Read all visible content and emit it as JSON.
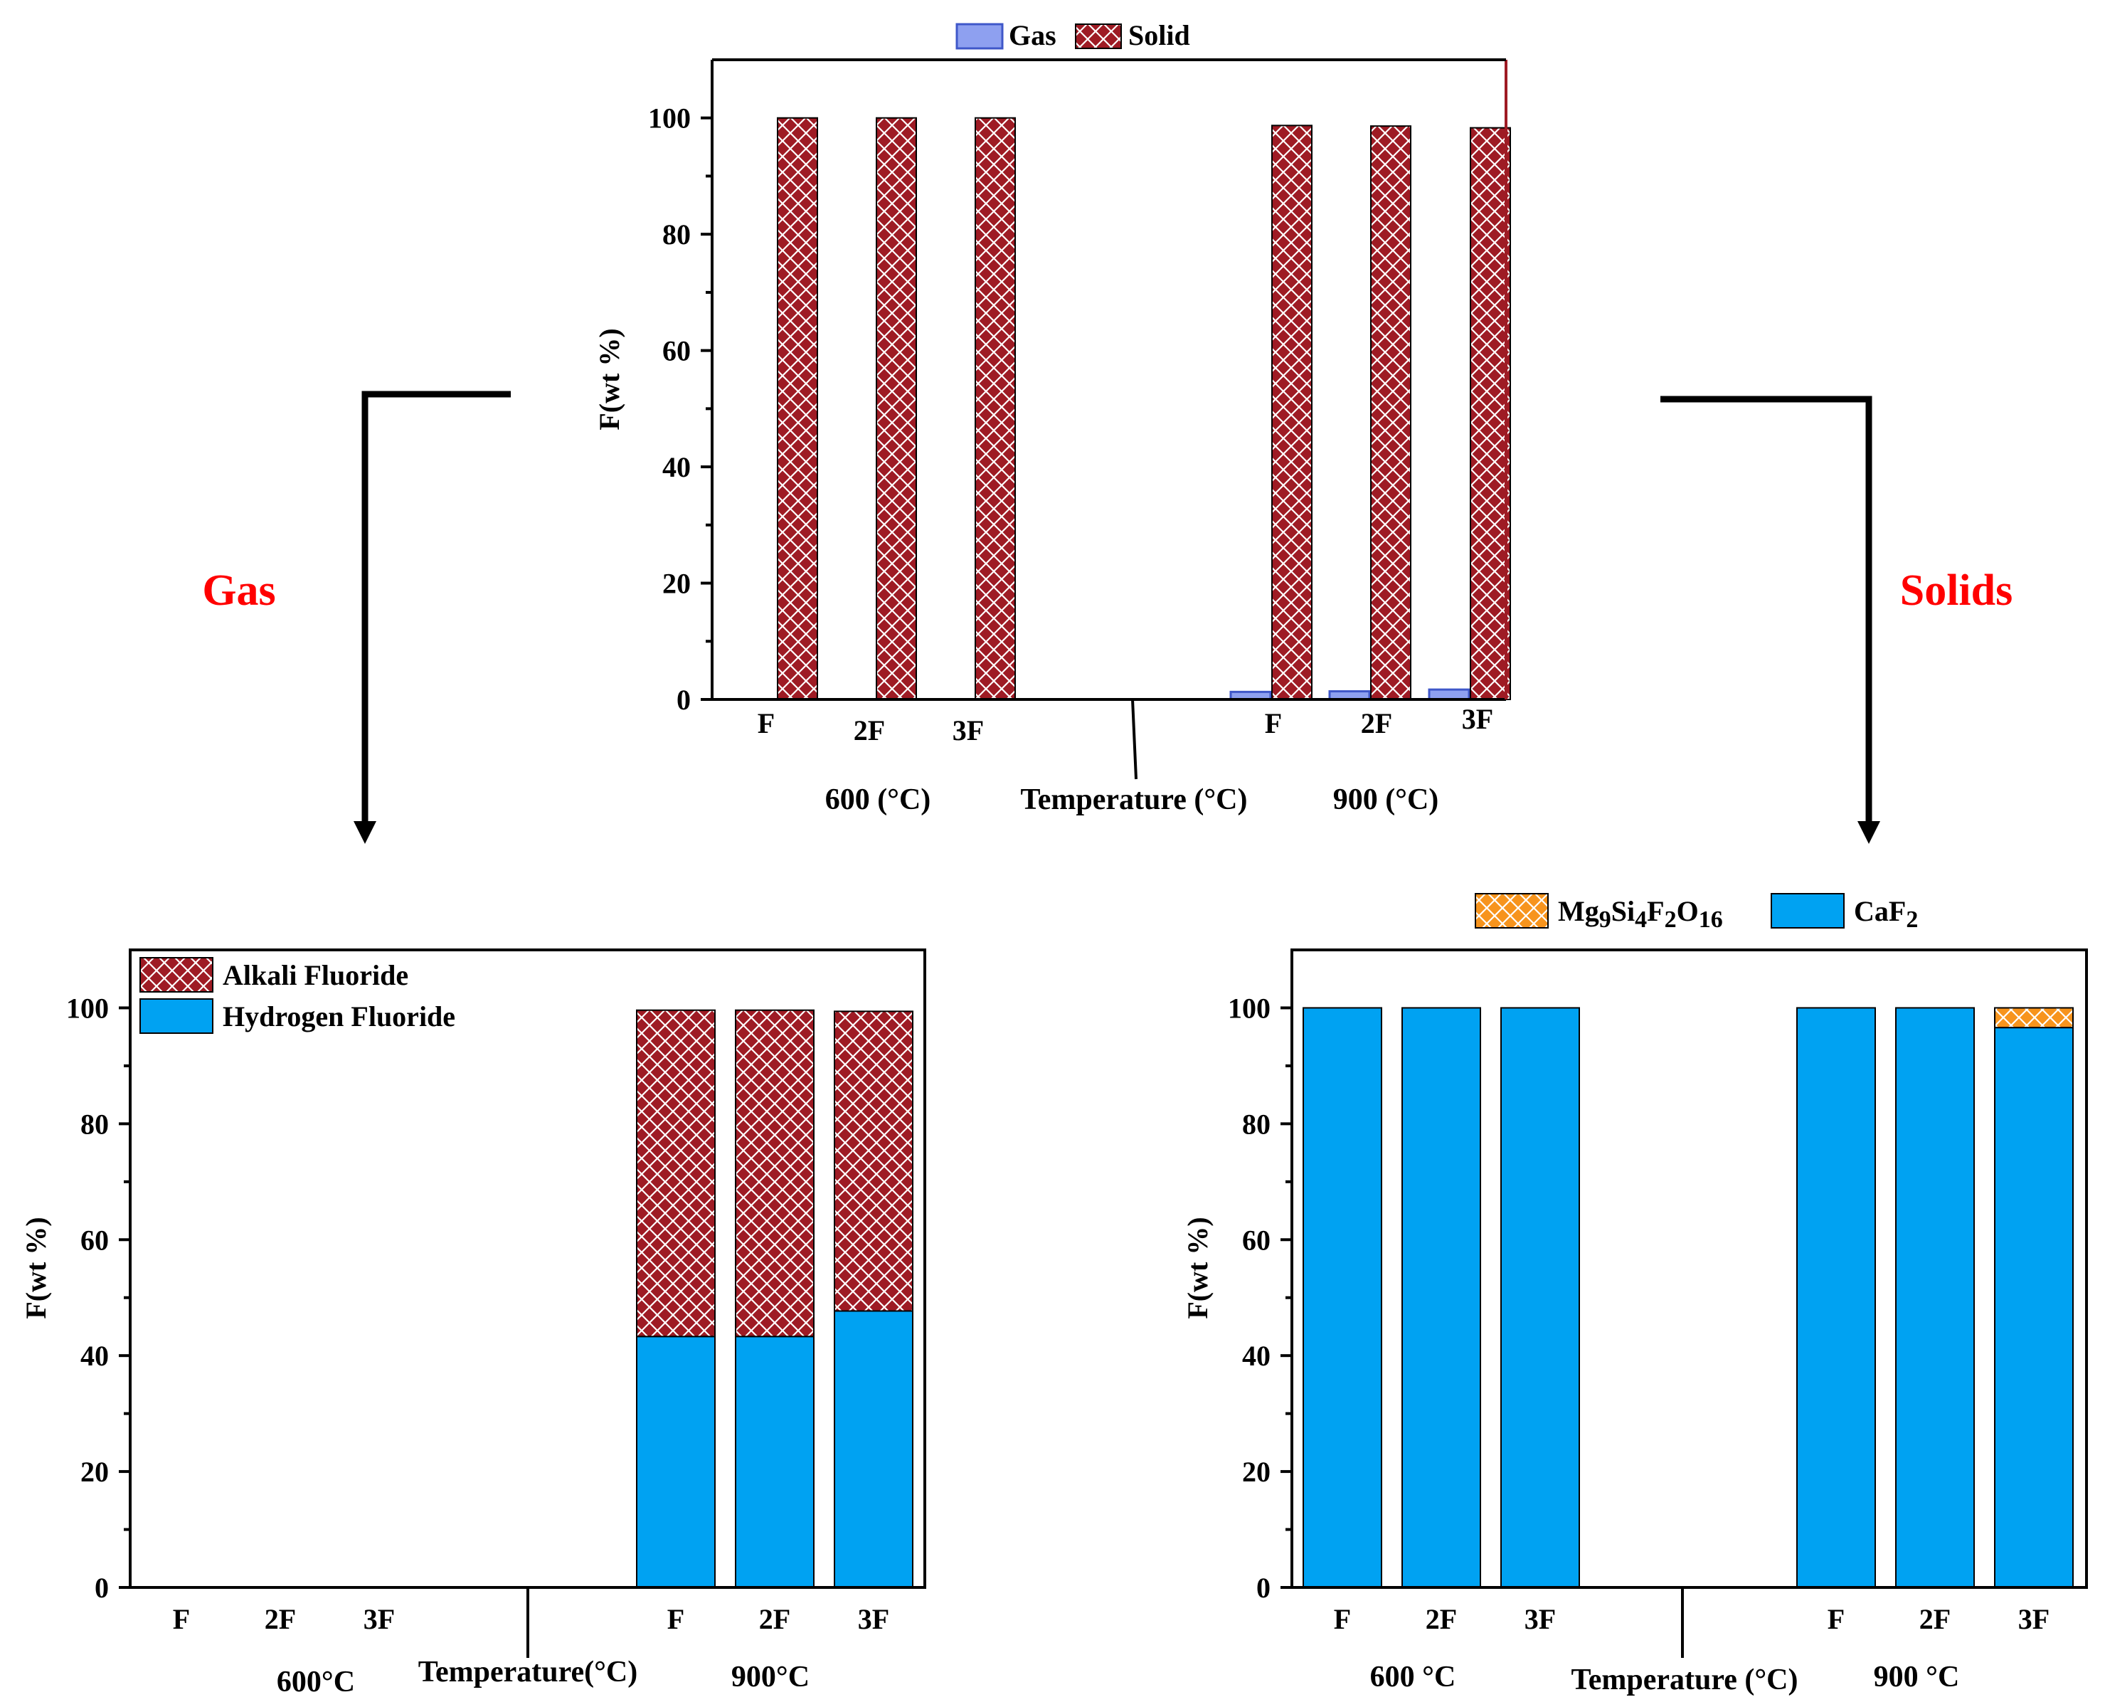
{
  "colors": {
    "solid_hatch": "#9e1b24",
    "gas_fill": "#8ea0f0",
    "gas_stroke": "#3f57c9",
    "alkali_hatch": "#9e1b24",
    "hydrogen": "#00a2f2",
    "mg_hatch": "#f7941d",
    "caf2": "#00a2f2",
    "branch_label": "#ff0000"
  },
  "labels": {
    "gas_branch": "Gas",
    "solids_branch": "Solids"
  },
  "chart_data": [
    {
      "id": "top",
      "type": "bar",
      "ylabel": "F(wt %)",
      "xlabel": "Temperature (°C)",
      "ylim": [
        0,
        110
      ],
      "yticks": [
        0,
        20,
        40,
        60,
        80,
        100
      ],
      "ytick_labels": [
        "0",
        "20",
        "40",
        "60",
        "80",
        "100"
      ],
      "categories": [
        "F",
        "2F",
        "3F",
        "F",
        "2F",
        "3F"
      ],
      "groups": [
        "600 (°C)",
        "900 (°C)"
      ],
      "series": [
        {
          "name": "Gas",
          "values": [
            0,
            0,
            0,
            1.3,
            1.4,
            1.7
          ]
        },
        {
          "name": "Solid",
          "values": [
            100,
            100,
            100,
            98.7,
            98.6,
            98.3
          ]
        }
      ],
      "legend_position": "top-center"
    },
    {
      "id": "gas",
      "type": "bar",
      "stacked": true,
      "ylabel": "F(wt %)",
      "xlabel": "Temperature(°C)",
      "ylim": [
        0,
        110
      ],
      "yticks": [
        0,
        20,
        40,
        60,
        80,
        100
      ],
      "ytick_labels": [
        "0",
        "20",
        "40",
        "60",
        "80",
        "100"
      ],
      "categories": [
        "F",
        "2F",
        "3F",
        "F",
        "2F",
        "3F"
      ],
      "groups": [
        "600°C",
        "900°C"
      ],
      "series": [
        {
          "name": "Hydrogen Fluoride",
          "values": [
            0,
            0,
            0,
            43.3,
            43.3,
            47.7
          ]
        },
        {
          "name": "Alkali Fluoride",
          "values": [
            0,
            0,
            0,
            56.3,
            56.3,
            51.7
          ]
        }
      ],
      "legend_position": "top-left"
    },
    {
      "id": "solids",
      "type": "bar",
      "stacked": true,
      "ylabel": "F(wt %)",
      "xlabel": "Temperature (°C)",
      "ylim": [
        0,
        110
      ],
      "yticks": [
        0,
        20,
        40,
        60,
        80,
        100
      ],
      "ytick_labels": [
        "0",
        "20",
        "40",
        "60",
        "80",
        "100"
      ],
      "categories": [
        "F",
        "2F",
        "3F",
        "F",
        "2F",
        "3F"
      ],
      "groups": [
        "600 °C",
        "900 °C"
      ],
      "series": [
        {
          "name": "CaF2",
          "values": [
            100,
            100,
            100,
            100,
            100,
            96.6
          ]
        },
        {
          "name": "Mg9Si4F2O16",
          "values": [
            0,
            0,
            0,
            0,
            0,
            3.4
          ]
        }
      ],
      "legend_position": "top-center"
    }
  ]
}
